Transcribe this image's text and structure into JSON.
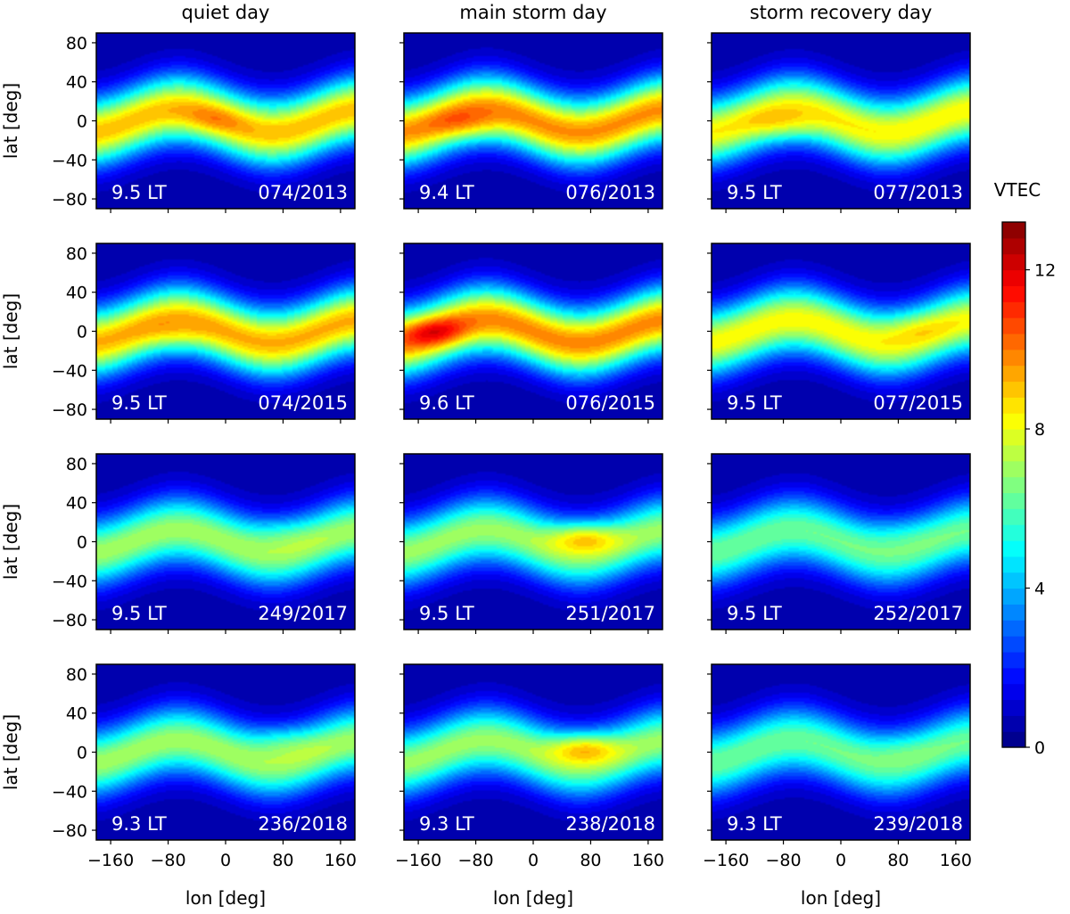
{
  "chart_data": {
    "type": "heatmap",
    "column_titles": [
      "quiet day",
      "main storm day",
      "storm recovery day"
    ],
    "xlabel": "lon [deg]",
    "ylabel": "lat [deg]",
    "xlim": [
      -180,
      180
    ],
    "ylim": [
      -90,
      90
    ],
    "xticks": [
      -160,
      -80,
      0,
      80,
      160
    ],
    "xtick_labels": [
      "−160",
      "−80",
      "0",
      "80",
      "160"
    ],
    "yticks": [
      80,
      40,
      0,
      -40,
      -80
    ],
    "ytick_labels": [
      "80",
      "40",
      "0",
      "−40",
      "−80"
    ],
    "colorbar": {
      "label": "VTEC",
      "min": 0,
      "max": 13.2,
      "ticks": [
        0,
        4,
        8,
        12
      ],
      "tick_labels": [
        "0",
        "4",
        "8",
        "12"
      ],
      "colormap": "jet"
    },
    "panels": [
      {
        "row": 0,
        "col": 0,
        "lt": "9.5 LT",
        "date": "074/2013",
        "peak_vtec": 9.6,
        "peak_lon": -20,
        "peak_lat": 0,
        "band_vtec": 8.6
      },
      {
        "row": 0,
        "col": 1,
        "lt": "9.4 LT",
        "date": "076/2013",
        "peak_vtec": 10.6,
        "peak_lon": -90,
        "peak_lat": -5,
        "band_vtec": 9.2
      },
      {
        "row": 0,
        "col": 2,
        "lt": "9.5 LT",
        "date": "077/2013",
        "peak_vtec": 9.3,
        "peak_lon": -80,
        "peak_lat": -5,
        "band_vtec": 7.9
      },
      {
        "row": 1,
        "col": 0,
        "lt": "9.5 LT",
        "date": "074/2015",
        "peak_vtec": 9.6,
        "peak_lon": -70,
        "peak_lat": -5,
        "band_vtec": 8.8
      },
      {
        "row": 1,
        "col": 1,
        "lt": "9.6 LT",
        "date": "076/2015",
        "peak_vtec": 11.6,
        "peak_lon": -140,
        "peak_lat": 0,
        "band_vtec": 9.3
      },
      {
        "row": 1,
        "col": 2,
        "lt": "9.5 LT",
        "date": "077/2015",
        "peak_vtec": 8.6,
        "peak_lon": 100,
        "peak_lat": 5,
        "band_vtec": 7.8
      },
      {
        "row": 2,
        "col": 0,
        "lt": "9.5 LT",
        "date": "249/2017",
        "peak_vtec": 7.4,
        "peak_lon": 80,
        "peak_lat": 10,
        "band_vtec": 6.6
      },
      {
        "row": 2,
        "col": 1,
        "lt": "9.5 LT",
        "date": "251/2017",
        "peak_vtec": 9.6,
        "peak_lon": 70,
        "peak_lat": 5,
        "band_vtec": 6.5
      },
      {
        "row": 2,
        "col": 2,
        "lt": "9.5 LT",
        "date": "252/2017",
        "peak_vtec": 6.4,
        "peak_lon": 80,
        "peak_lat": 10,
        "band_vtec": 5.9
      },
      {
        "row": 3,
        "col": 0,
        "lt": "9.3 LT",
        "date": "236/2018",
        "peak_vtec": 7.8,
        "peak_lon": 80,
        "peak_lat": 12,
        "band_vtec": 6.6
      },
      {
        "row": 3,
        "col": 1,
        "lt": "9.3 LT",
        "date": "238/2018",
        "peak_vtec": 9.8,
        "peak_lon": 70,
        "peak_lat": 5,
        "band_vtec": 6.5
      },
      {
        "row": 3,
        "col": 2,
        "lt": "9.3 LT",
        "date": "239/2018",
        "peak_vtec": 6.5,
        "peak_lon": 80,
        "peak_lat": 5,
        "band_vtec": 5.9
      }
    ]
  }
}
